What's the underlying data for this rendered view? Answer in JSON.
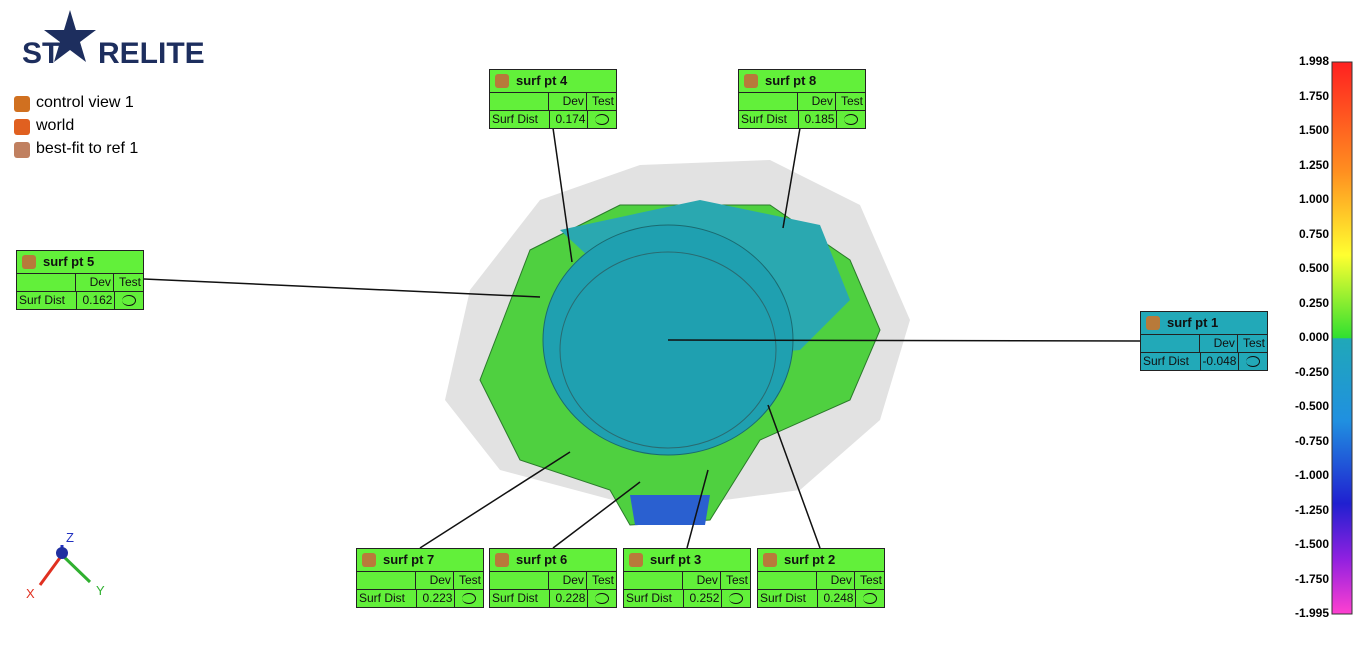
{
  "logo": {
    "left": "ST",
    "right": "RELITE"
  },
  "tree": [
    "control view 1",
    "world",
    "best-fit to ref 1"
  ],
  "callouts": [
    {
      "title": "surf pt 4",
      "columns": [
        "Dev",
        "Test"
      ],
      "row_label": "Surf Dist",
      "dev": "0.174"
    },
    {
      "title": "surf pt 8",
      "columns": [
        "Dev",
        "Test"
      ],
      "row_label": "Surf Dist",
      "dev": "0.185"
    },
    {
      "title": "surf pt 5",
      "columns": [
        "Dev",
        "Test"
      ],
      "row_label": "Surf Dist",
      "dev": "0.162"
    },
    {
      "title": "surf pt 1",
      "columns": [
        "Dev",
        "Test"
      ],
      "row_label": "Surf Dist",
      "dev": "-0.048"
    },
    {
      "title": "surf pt 7",
      "columns": [
        "Dev",
        "Test"
      ],
      "row_label": "Surf Dist",
      "dev": "0.223"
    },
    {
      "title": "surf pt 6",
      "columns": [
        "Dev",
        "Test"
      ],
      "row_label": "Surf Dist",
      "dev": "0.228"
    },
    {
      "title": "surf pt 3",
      "columns": [
        "Dev",
        "Test"
      ],
      "row_label": "Surf Dist",
      "dev": "0.252"
    },
    {
      "title": "surf pt 2",
      "columns": [
        "Dev",
        "Test"
      ],
      "row_label": "Surf Dist",
      "dev": "0.248"
    }
  ],
  "color_scale": [
    "1.998",
    "1.750",
    "1.500",
    "1.250",
    "1.000",
    "0.750",
    "0.500",
    "0.250",
    "0.000",
    "-0.250",
    "-0.500",
    "-0.750",
    "-1.000",
    "-1.250",
    "-1.500",
    "-1.750",
    "-1.995"
  ],
  "axes": {
    "z": "Z",
    "x": "X",
    "y": "Y"
  }
}
